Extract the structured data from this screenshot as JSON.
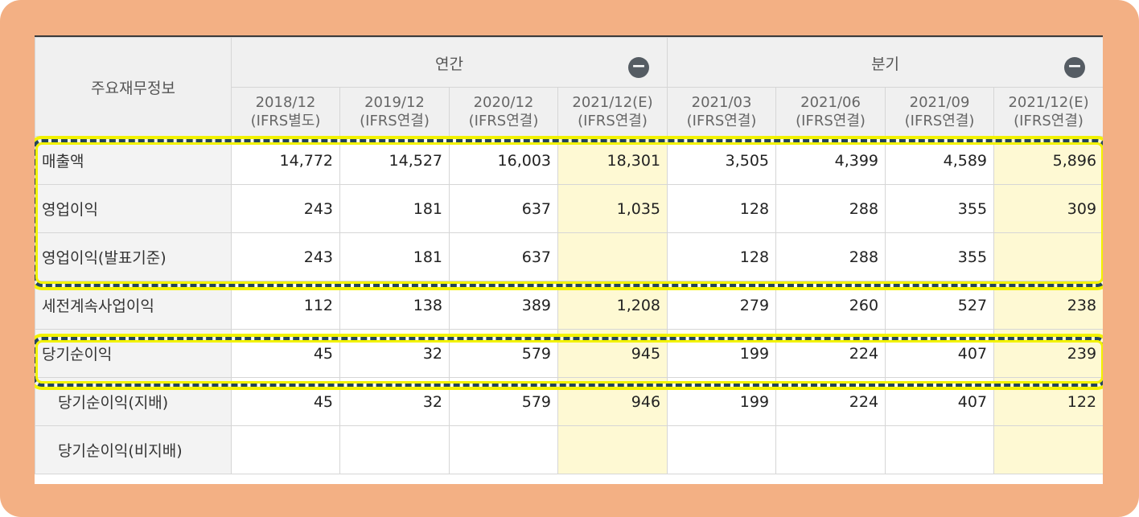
{
  "table": {
    "corner_label": "주요재무정보",
    "groups": [
      {
        "label": "연간",
        "toggle": "−"
      },
      {
        "label": "분기",
        "toggle": "−"
      }
    ],
    "periods": [
      {
        "date": "2018/12",
        "basis": "(IFRS별도)"
      },
      {
        "date": "2019/12",
        "basis": "(IFRS연결)"
      },
      {
        "date": "2020/12",
        "basis": "(IFRS연결)"
      },
      {
        "date": "2021/12(E)",
        "basis": "(IFRS연결)"
      },
      {
        "date": "2021/03",
        "basis": "(IFRS연결)"
      },
      {
        "date": "2021/06",
        "basis": "(IFRS연결)"
      },
      {
        "date": "2021/09",
        "basis": "(IFRS연결)"
      },
      {
        "date": "2021/12(E)",
        "basis": "(IFRS연결)"
      }
    ],
    "rows": [
      {
        "label": "매출액",
        "values": [
          "14,772",
          "14,527",
          "16,003",
          "18,301",
          "3,505",
          "4,399",
          "4,589",
          "5,896"
        ]
      },
      {
        "label": "영업이익",
        "values": [
          "243",
          "181",
          "637",
          "1,035",
          "128",
          "288",
          "355",
          "309"
        ]
      },
      {
        "label": "영업이익(발표기준)",
        "values": [
          "243",
          "181",
          "637",
          "",
          "128",
          "288",
          "355",
          ""
        ]
      },
      {
        "label": "세전계속사업이익",
        "values": [
          "112",
          "138",
          "389",
          "1,208",
          "279",
          "260",
          "527",
          "238"
        ]
      },
      {
        "label": "당기순이익",
        "values": [
          "45",
          "32",
          "579",
          "945",
          "199",
          "224",
          "407",
          "239"
        ]
      },
      {
        "label": "당기순이익(지배)",
        "values": [
          "45",
          "32",
          "579",
          "946",
          "199",
          "224",
          "407",
          "122"
        ]
      },
      {
        "label": "당기순이익(비지배)",
        "values": [
          "",
          "",
          "",
          "",
          "",
          "",
          "",
          ""
        ]
      }
    ]
  },
  "colors": {
    "frame": "#f3b084",
    "estimate_bg": "#fef9d3",
    "highlight_dash": "#24445b",
    "highlight_glow": "#f2f200"
  }
}
